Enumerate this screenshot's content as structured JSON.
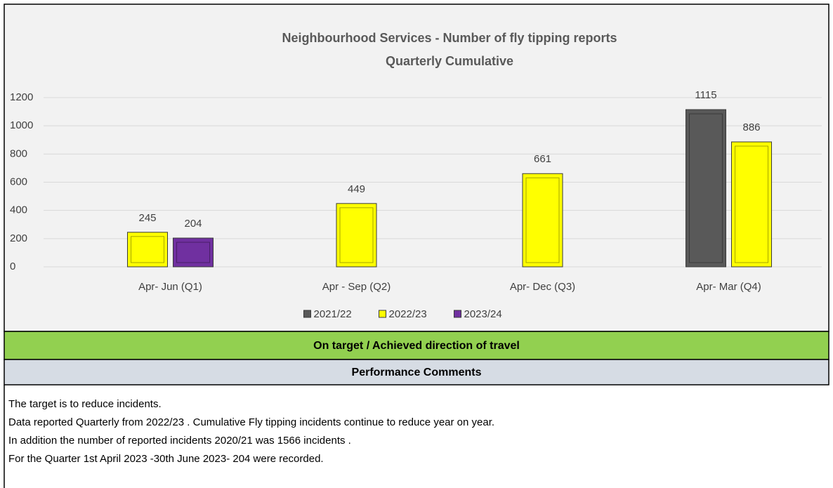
{
  "chart_data": {
    "type": "bar",
    "title": "Neighbourhood Services - Number of fly tipping reports",
    "subtitle": "Quarterly Cumulative",
    "categories": [
      "Apr- Jun  (Q1)",
      "Apr - Sep  (Q2)",
      "Apr- Dec  (Q3)",
      "Apr- Mar  (Q4)"
    ],
    "series": [
      {
        "name": "2021/22",
        "color": "#595959",
        "values": [
          null,
          null,
          null,
          1115
        ]
      },
      {
        "name": "2022/23",
        "color": "#ffff00",
        "values": [
          245,
          449,
          661,
          886
        ]
      },
      {
        "name": "2023/24",
        "color": "#7030a0",
        "values": [
          204,
          null,
          null,
          null
        ]
      }
    ],
    "ylim": [
      0,
      1200
    ],
    "yticks": [
      0,
      200,
      400,
      600,
      800,
      1000,
      1200
    ],
    "grid": true,
    "legend": "bottom"
  },
  "status": "On target / Achieved direction of travel",
  "comments": {
    "heading": "Performance Comments",
    "lines": [
      "The target is to reduce incidents.",
      "Data reported Quarterly from 2022/23 . Cumulative Fly tipping incidents continue to reduce year on year.",
      "In addition the number of reported incidents 2020/21 was 1566 incidents  .",
      "For the Quarter 1st April 2023 -30th June 2023- 204 were recorded."
    ]
  }
}
